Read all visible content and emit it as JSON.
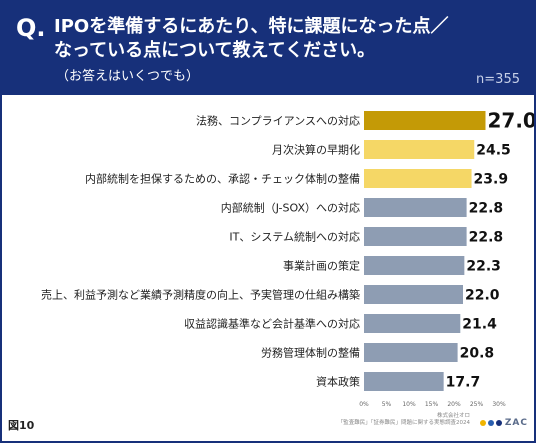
{
  "header": {
    "q_mark": "Q.",
    "question_line1": "IPOを準備するにあたり、特に課題になった点／",
    "question_line2": "なっている点について教えてください。",
    "note": "（お答えはいくつでも）",
    "n_count": "n=355"
  },
  "colors": {
    "navy": "#17307a",
    "top_bar": "#c49a06",
    "highlight_bar": "#f5d766",
    "other_bar": "#8e9db3"
  },
  "chart_data": {
    "type": "bar",
    "orientation": "horizontal",
    "categories": [
      "法務、コンプライアンスへの対応",
      "月次決算の早期化",
      "内部統制を担保するための、承認・チェック体制の整備",
      "内部統制（J-SOX）への対応",
      "IT、システム統制への対応",
      "事業計画の策定",
      "売上、利益予測など業績予測精度の向上、予実管理の仕組み構築",
      "収益認識基準など会計基準への対応",
      "労務管理体制の整備",
      "資本政策"
    ],
    "values": [
      27.0,
      24.5,
      23.9,
      22.8,
      22.8,
      22.3,
      22.0,
      21.4,
      20.8,
      17.7
    ],
    "value_labels": [
      "27.0",
      "24.5",
      "23.9",
      "22.8",
      "22.8",
      "22.3",
      "22.0",
      "21.4",
      "20.8",
      "17.7"
    ],
    "bar_colors": [
      "#c49a06",
      "#f5d766",
      "#f5d766",
      "#8e9db3",
      "#8e9db3",
      "#8e9db3",
      "#8e9db3",
      "#8e9db3",
      "#8e9db3",
      "#8e9db3"
    ],
    "x_ticks": [
      "0%",
      "5%",
      "10%",
      "15%",
      "20%",
      "25%",
      "30%"
    ],
    "xlim": [
      0,
      30
    ],
    "grid": false
  },
  "footer": {
    "figure_label": "図10",
    "credit_line1": "株式会社オロ",
    "credit_line2": "「監査難民」「証券難民」問題に関する実態調査2024",
    "logo_text": "ZAC",
    "logo_dot_colors": [
      "#f0b400",
      "#2a5fb0",
      "#17307a"
    ]
  }
}
